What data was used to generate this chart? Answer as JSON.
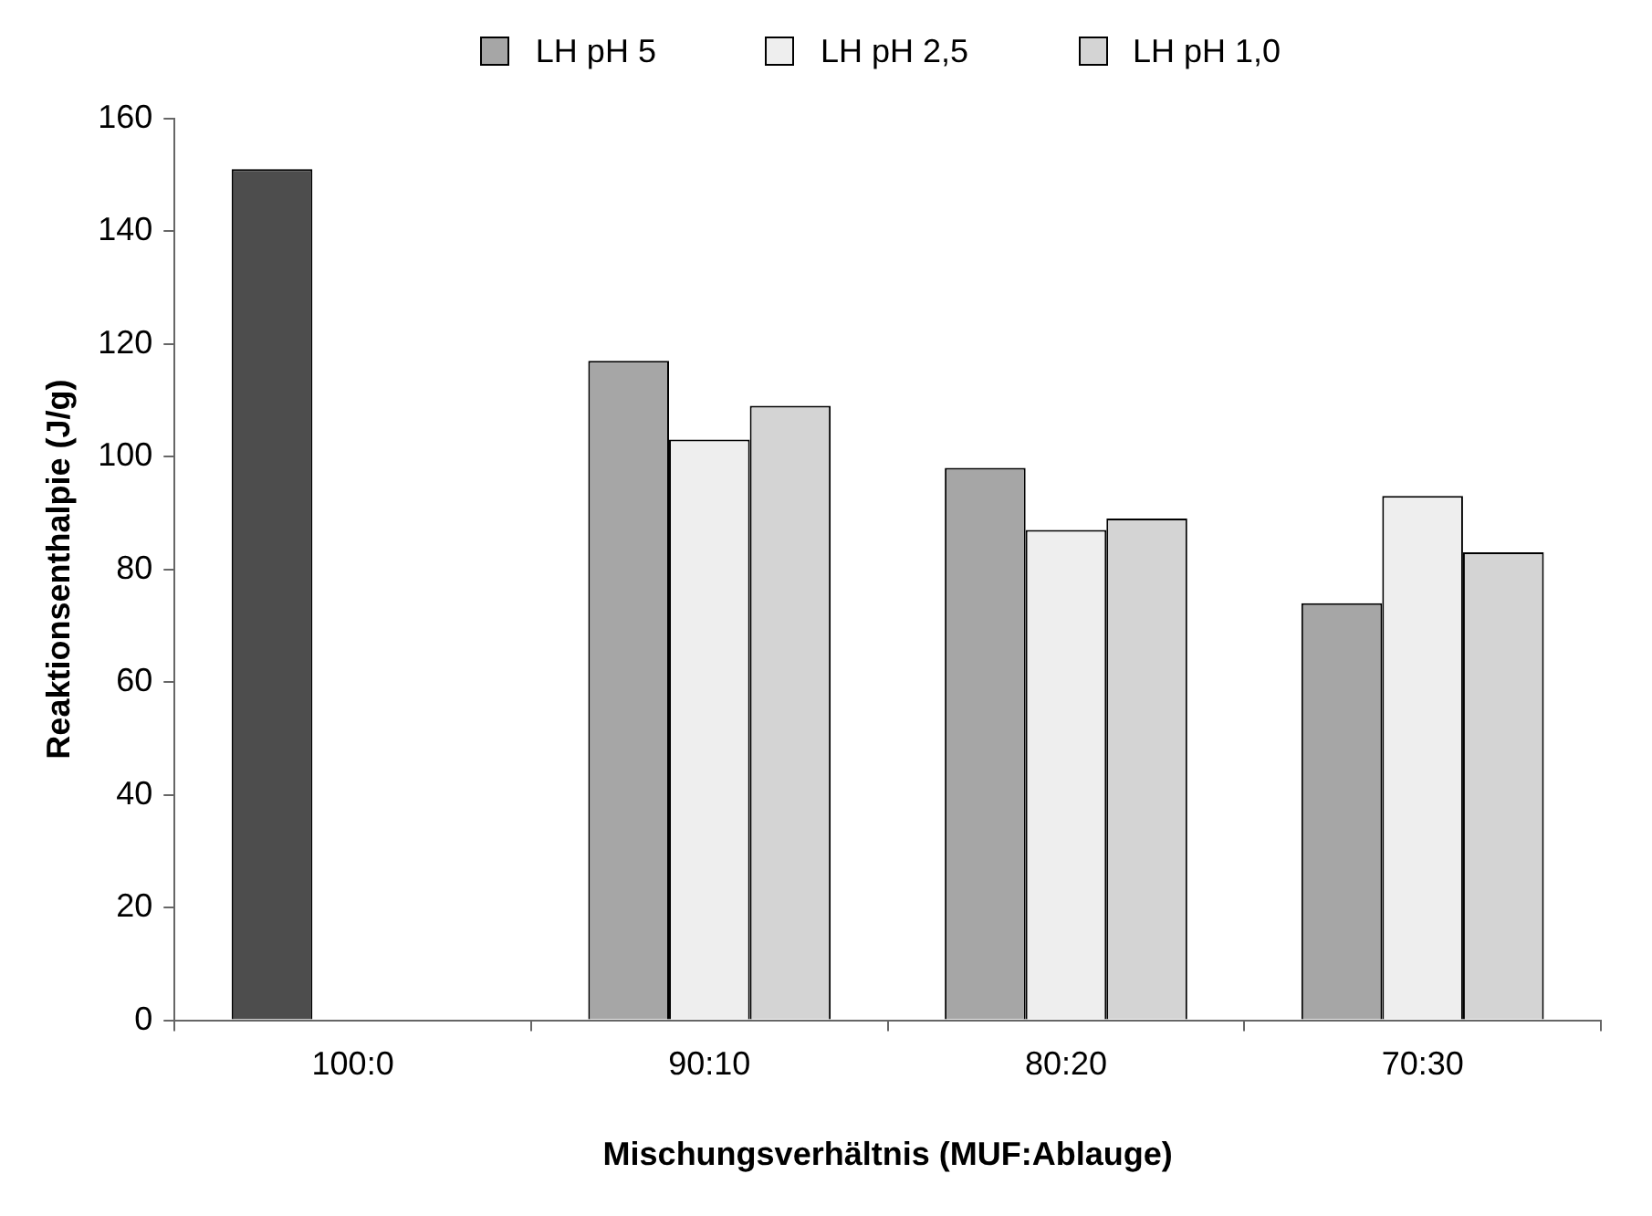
{
  "chart_data": {
    "type": "bar",
    "xlabel": "Mischungsverhältnis (MUF:Ablauge)",
    "ylabel": "Reaktionsenthalpie (J/g)",
    "categories": [
      "100:0",
      "90:10",
      "80:20",
      "70:30"
    ],
    "series": [
      {
        "name": "LH pH 5",
        "color": "#a6a6a6",
        "colors": [
          "#4d4d4d",
          "#a6a6a6",
          "#a6a6a6",
          "#a6a6a6"
        ],
        "values": [
          151,
          117,
          98,
          74
        ]
      },
      {
        "name": "LH pH 2,5",
        "color": "#eeeeee",
        "values": [
          null,
          103,
          87,
          93
        ]
      },
      {
        "name": "LH pH 1,0",
        "color": "#d4d4d4",
        "values": [
          null,
          109,
          89,
          83
        ]
      }
    ],
    "ylim": [
      0,
      160
    ],
    "yticks": [
      0,
      20,
      40,
      60,
      80,
      100,
      120,
      140,
      160
    ],
    "grid": false,
    "legend": "top"
  }
}
